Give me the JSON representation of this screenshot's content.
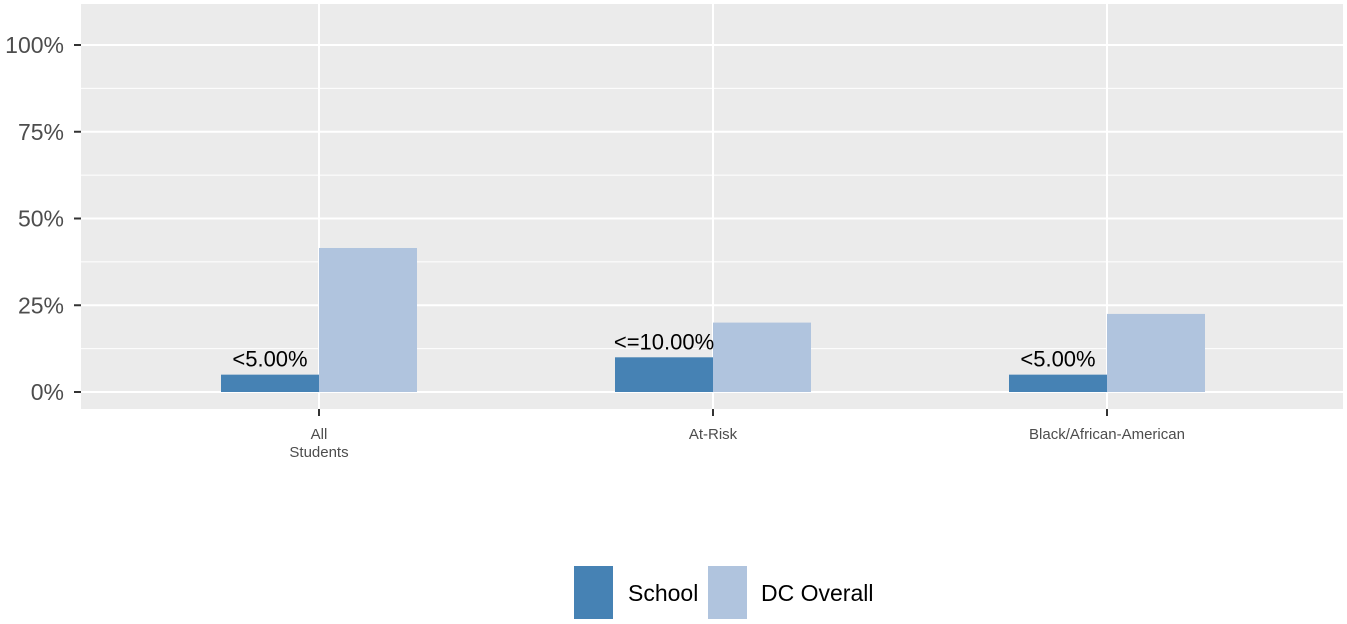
{
  "chart_data": {
    "type": "bar",
    "categories": [
      "All\nStudents",
      "At-Risk",
      "Black/African-American"
    ],
    "series": [
      {
        "name": "School",
        "values": [
          5,
          10,
          5
        ],
        "labels": [
          "<5.00%",
          "<=10.00%",
          "<5.00%"
        ]
      },
      {
        "name": "DC Overall",
        "values": [
          41.5,
          20,
          22.5
        ],
        "labels": [
          "",
          "",
          ""
        ]
      }
    ],
    "y_ticks": [
      "0%",
      "25%",
      "50%",
      "75%",
      "100%"
    ],
    "ylim": [
      0,
      100
    ],
    "grid": true,
    "legend_position": "bottom",
    "colors": {
      "School": "#4682b4",
      "DC Overall": "#b0c4de",
      "panel_background": "#ebebeb",
      "grid": "#ffffff"
    }
  }
}
